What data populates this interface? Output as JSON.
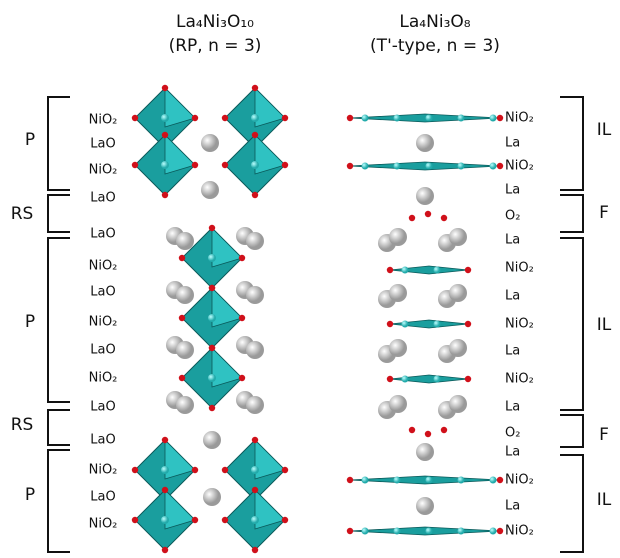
{
  "left_title": {
    "formula": "La₄Ni₃O₁₀",
    "subtitle": "(RP, n = 3)"
  },
  "right_title": {
    "formula": "La₄Ni₃O₈",
    "subtitle": "(T'-type, n = 3)"
  },
  "left_layers": [
    "NiO₂",
    "LaO",
    "NiO₂",
    "LaO",
    "LaO",
    "NiO₂",
    "LaO",
    "NiO₂",
    "LaO",
    "NiO₂",
    "LaO",
    "LaO",
    "NiO₂",
    "LaO",
    "NiO₂"
  ],
  "left_blocks": [
    "P",
    "RS",
    "P",
    "RS",
    "P"
  ],
  "right_layers": [
    "NiO₂",
    "La",
    "NiO₂",
    "La",
    "O₂",
    "La",
    "NiO₂",
    "La",
    "NiO₂",
    "La",
    "NiO₂",
    "La",
    "O₂",
    "La",
    "NiO₂",
    "La",
    "NiO₂"
  ],
  "right_blocks": [
    "IL",
    "F",
    "IL",
    "F",
    "IL"
  ]
}
